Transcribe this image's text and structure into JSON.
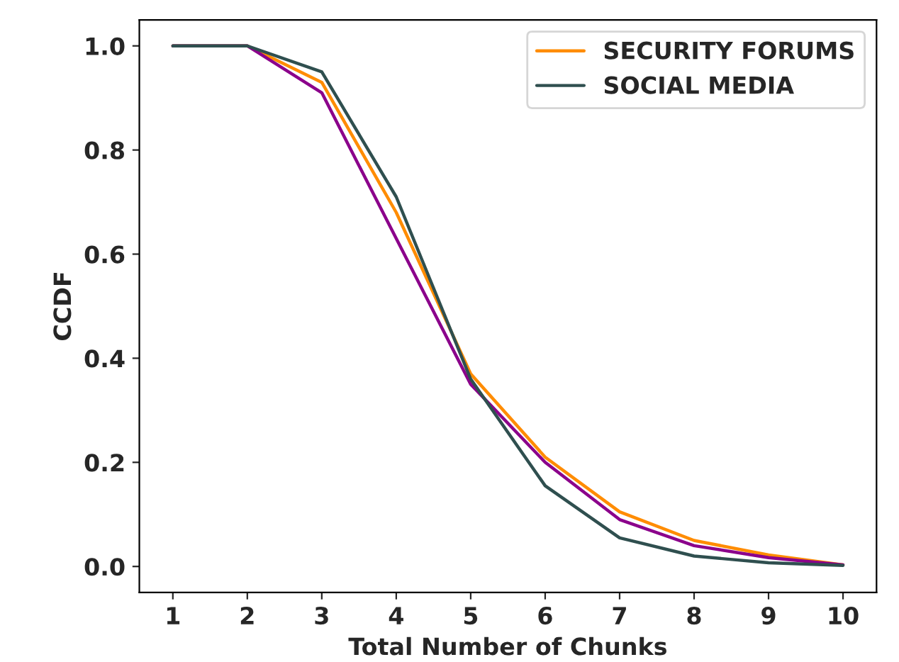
{
  "chart_data": {
    "type": "line",
    "xlabel": "Total Number of Chunks",
    "ylabel": "CCDF",
    "x": [
      1,
      2,
      3,
      4,
      5,
      6,
      7,
      8,
      9,
      10
    ],
    "series": [
      {
        "name": "SECURITY FORUMS",
        "color": "#ff8c00",
        "values": [
          1.0,
          1.0,
          0.93,
          0.68,
          0.37,
          0.21,
          0.105,
          0.05,
          0.022,
          0.003
        ]
      },
      {
        "color": "#8b008b",
        "values": [
          1.0,
          1.0,
          0.91,
          0.63,
          0.35,
          0.2,
          0.09,
          0.04,
          0.017,
          0.003
        ]
      },
      {
        "name": "SOCIAL MEDIA",
        "color": "#2f4f4f",
        "values": [
          1.0,
          1.0,
          0.95,
          0.71,
          0.36,
          0.155,
          0.055,
          0.02,
          0.007,
          0.002
        ]
      }
    ],
    "xlim": [
      0.55,
      10.45
    ],
    "xticks": [
      1,
      2,
      3,
      4,
      5,
      6,
      7,
      8,
      9,
      10
    ],
    "ylim": [
      -0.05,
      1.05
    ],
    "yticks": [
      {
        "value": 0,
        "label": "0.0"
      },
      0.2,
      0.4,
      0.6,
      0.8,
      {
        "value": 1,
        "label": "1.0"
      }
    ],
    "grid": false,
    "legend": "top right"
  }
}
